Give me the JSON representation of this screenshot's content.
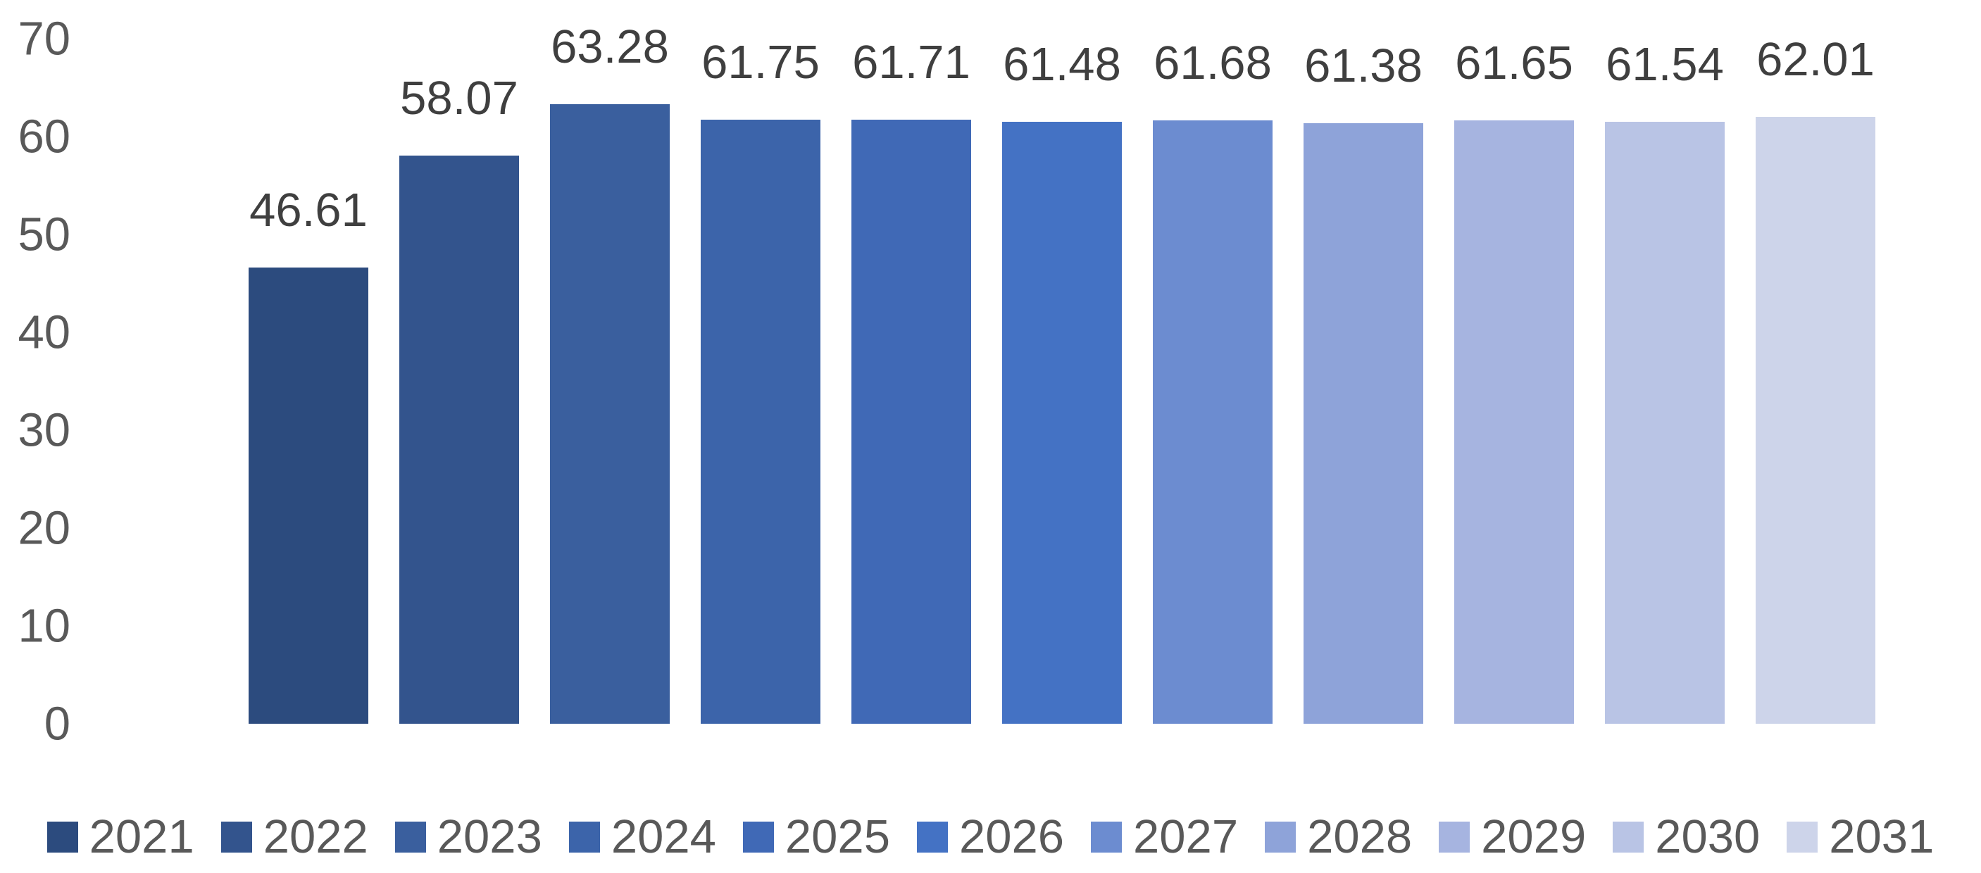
{
  "chart_data": {
    "type": "bar",
    "title": "",
    "xlabel": "",
    "ylabel": "",
    "categories": [
      "2021",
      "2022",
      "2023",
      "2024",
      "2025",
      "2026",
      "2027",
      "2028",
      "2029",
      "2030",
      "2031"
    ],
    "values": [
      46.61,
      58.07,
      63.28,
      61.75,
      61.71,
      61.48,
      61.68,
      61.38,
      61.65,
      61.54,
      62.01
    ],
    "value_labels": [
      "46.61",
      "58.07",
      "63.28",
      "61.75",
      "61.71",
      "61.48",
      "61.68",
      "61.38",
      "61.65",
      "61.54",
      "62.01"
    ],
    "bar_colors": [
      "#2C4B7E",
      "#33548D",
      "#3A5F9E",
      "#3C64AA",
      "#4069B6",
      "#4472C4",
      "#6C8CD0",
      "#8EA3D9",
      "#A6B4E0",
      "#B9C4E5",
      "#CDD4EA"
    ],
    "ylim": [
      0,
      70
    ],
    "ytick_step": 10,
    "yticks": [
      "0",
      "10",
      "20",
      "30",
      "40",
      "50",
      "60",
      "70"
    ],
    "grid": "off",
    "axis_lines": "off",
    "legend_position": "bottom",
    "legend_marker": "square",
    "legend_entries": [
      "2021",
      "2022",
      "2023",
      "2024",
      "2025",
      "2026",
      "2027",
      "2028",
      "2029",
      "2030",
      "2031"
    ],
    "colors": {
      "background": "#FFFFFF",
      "value_label_text": "#3F3F3F",
      "axis_tick_text": "#595959",
      "legend_text": "#595959"
    }
  }
}
